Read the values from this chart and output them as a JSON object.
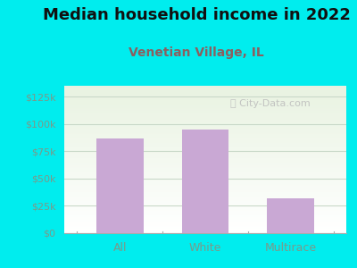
{
  "title": "Median household income in 2022",
  "subtitle": "Venetian Village, IL",
  "categories": [
    "All",
    "White",
    "Multirace"
  ],
  "values": [
    87000,
    95000,
    32000
  ],
  "bar_color": "#C9A8D4",
  "background_color": "#00EDEE",
  "title_fontsize": 13,
  "title_color": "#111111",
  "subtitle_fontsize": 10,
  "subtitle_color": "#8B6060",
  "yticks": [
    0,
    25000,
    50000,
    75000,
    100000,
    125000
  ],
  "ylim": [
    0,
    135000
  ],
  "ytick_labels": [
    "$0",
    "$25k",
    "$50k",
    "$75k",
    "$100k",
    "$125k"
  ],
  "watermark": "City-Data.com",
  "watermark_color": "#bbbbbb",
  "tick_color": "#7a9a8a",
  "grid_color": "#c8d8c8"
}
